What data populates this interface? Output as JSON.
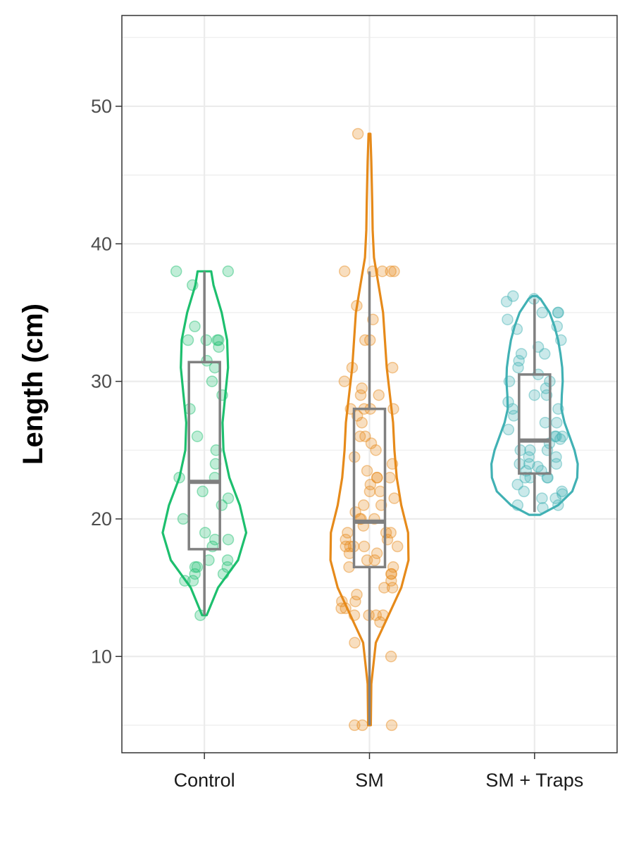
{
  "chart_data": {
    "type": "violin",
    "title": "",
    "xlabel": "",
    "ylabel": "Length (cm)",
    "ylim": [
      3,
      56.6
    ],
    "yticks": [
      10,
      20,
      30,
      40,
      50
    ],
    "grid": true,
    "legend": "none",
    "categories": [
      "Control",
      "SM",
      "SM + Traps"
    ],
    "series": [
      {
        "category": "Control",
        "color": "#1dbf6e",
        "min": 13,
        "max": 38,
        "box": {
          "q1": 17.8,
          "median": 22.7,
          "q3": 31.4,
          "whisker_low": 13,
          "whisker_high": 38
        },
        "density": [
          [
            13,
            0.05
          ],
          [
            15,
            0.3
          ],
          [
            17,
            0.74
          ],
          [
            19,
            0.92
          ],
          [
            21,
            0.78
          ],
          [
            23,
            0.55
          ],
          [
            25,
            0.42
          ],
          [
            27,
            0.4
          ],
          [
            29,
            0.46
          ],
          [
            31,
            0.52
          ],
          [
            33,
            0.5
          ],
          [
            35,
            0.38
          ],
          [
            37,
            0.2
          ],
          [
            38,
            0.15
          ]
        ],
        "points": [
          38,
          38,
          37,
          33,
          33,
          33,
          34,
          33,
          32.5,
          31.5,
          31,
          30,
          29,
          28,
          26,
          25,
          24,
          23,
          23,
          22,
          21.5,
          21,
          20,
          19,
          18.5,
          18.5,
          18,
          17,
          17,
          16.5,
          16.5,
          16.5,
          16,
          16,
          15.5,
          15.5,
          13
        ]
      },
      {
        "category": "SM",
        "color": "#e68a1a",
        "min": 5,
        "max": 48,
        "box": {
          "q1": 16.5,
          "median": 19.8,
          "q3": 28,
          "whisker_low": 5,
          "whisker_high": 38
        },
        "density": [
          [
            5,
            0.03
          ],
          [
            8,
            0.04
          ],
          [
            11,
            0.14
          ],
          [
            13,
            0.42
          ],
          [
            15,
            0.7
          ],
          [
            17,
            0.86
          ],
          [
            19,
            0.85
          ],
          [
            21,
            0.7
          ],
          [
            23,
            0.6
          ],
          [
            25,
            0.55
          ],
          [
            27,
            0.52
          ],
          [
            29,
            0.45
          ],
          [
            31,
            0.38
          ],
          [
            33,
            0.34
          ],
          [
            35,
            0.3
          ],
          [
            37,
            0.2
          ],
          [
            39,
            0.1
          ],
          [
            41,
            0.07
          ],
          [
            43,
            0.06
          ],
          [
            46,
            0.04
          ],
          [
            48,
            0.02
          ]
        ],
        "points": [
          48,
          38,
          38,
          38,
          38,
          38,
          35.5,
          34.5,
          33,
          33,
          31,
          31,
          30,
          29.5,
          29,
          29,
          28,
          28,
          28,
          28,
          27.5,
          27,
          26,
          26,
          25.5,
          25,
          24.5,
          24,
          23.5,
          23,
          23,
          23,
          22.5,
          22,
          22,
          21.5,
          21,
          21,
          20.5,
          20,
          20,
          20,
          19.5,
          19,
          19,
          19,
          18.5,
          18.5,
          18,
          18,
          18,
          18,
          18,
          17.5,
          17.5,
          17,
          17,
          16.5,
          16.5,
          16,
          16,
          15.5,
          15,
          15,
          14.5,
          14,
          14,
          13.5,
          13.5,
          13,
          13,
          13,
          13,
          12.5,
          11,
          10,
          5,
          5,
          5
        ]
      },
      {
        "category": "SM + Traps",
        "color": "#41b1b4",
        "min": 20.3,
        "max": 36.2,
        "box": {
          "q1": 23.3,
          "median": 25.7,
          "q3": 30.5,
          "whisker_low": 20.5,
          "whisker_high": 36
        },
        "density": [
          [
            20.3,
            0.12
          ],
          [
            21,
            0.52
          ],
          [
            22,
            0.83
          ],
          [
            23,
            0.94
          ],
          [
            24,
            0.95
          ],
          [
            25,
            0.88
          ],
          [
            26,
            0.77
          ],
          [
            27,
            0.66
          ],
          [
            28,
            0.59
          ],
          [
            29,
            0.6
          ],
          [
            30,
            0.62
          ],
          [
            31,
            0.61
          ],
          [
            32,
            0.57
          ],
          [
            33,
            0.52
          ],
          [
            34,
            0.44
          ],
          [
            35,
            0.33
          ],
          [
            36,
            0.13
          ],
          [
            36.2,
            0.05
          ]
        ],
        "points": [
          36.2,
          36,
          35.8,
          35,
          35,
          35,
          34.5,
          34,
          33.8,
          33,
          32.5,
          32,
          32,
          31.5,
          31,
          30.5,
          30,
          30,
          29.5,
          29,
          29,
          28.5,
          28,
          28,
          27.5,
          27,
          27,
          26.5,
          26,
          26,
          26,
          25.8,
          25.5,
          25,
          25,
          25,
          24.5,
          24.5,
          24,
          24,
          24,
          23.8,
          23.5,
          23.5,
          23,
          23,
          23,
          23,
          22.5,
          22,
          22,
          21.8,
          21.5,
          21.5,
          21,
          21,
          20.8
        ]
      }
    ]
  }
}
